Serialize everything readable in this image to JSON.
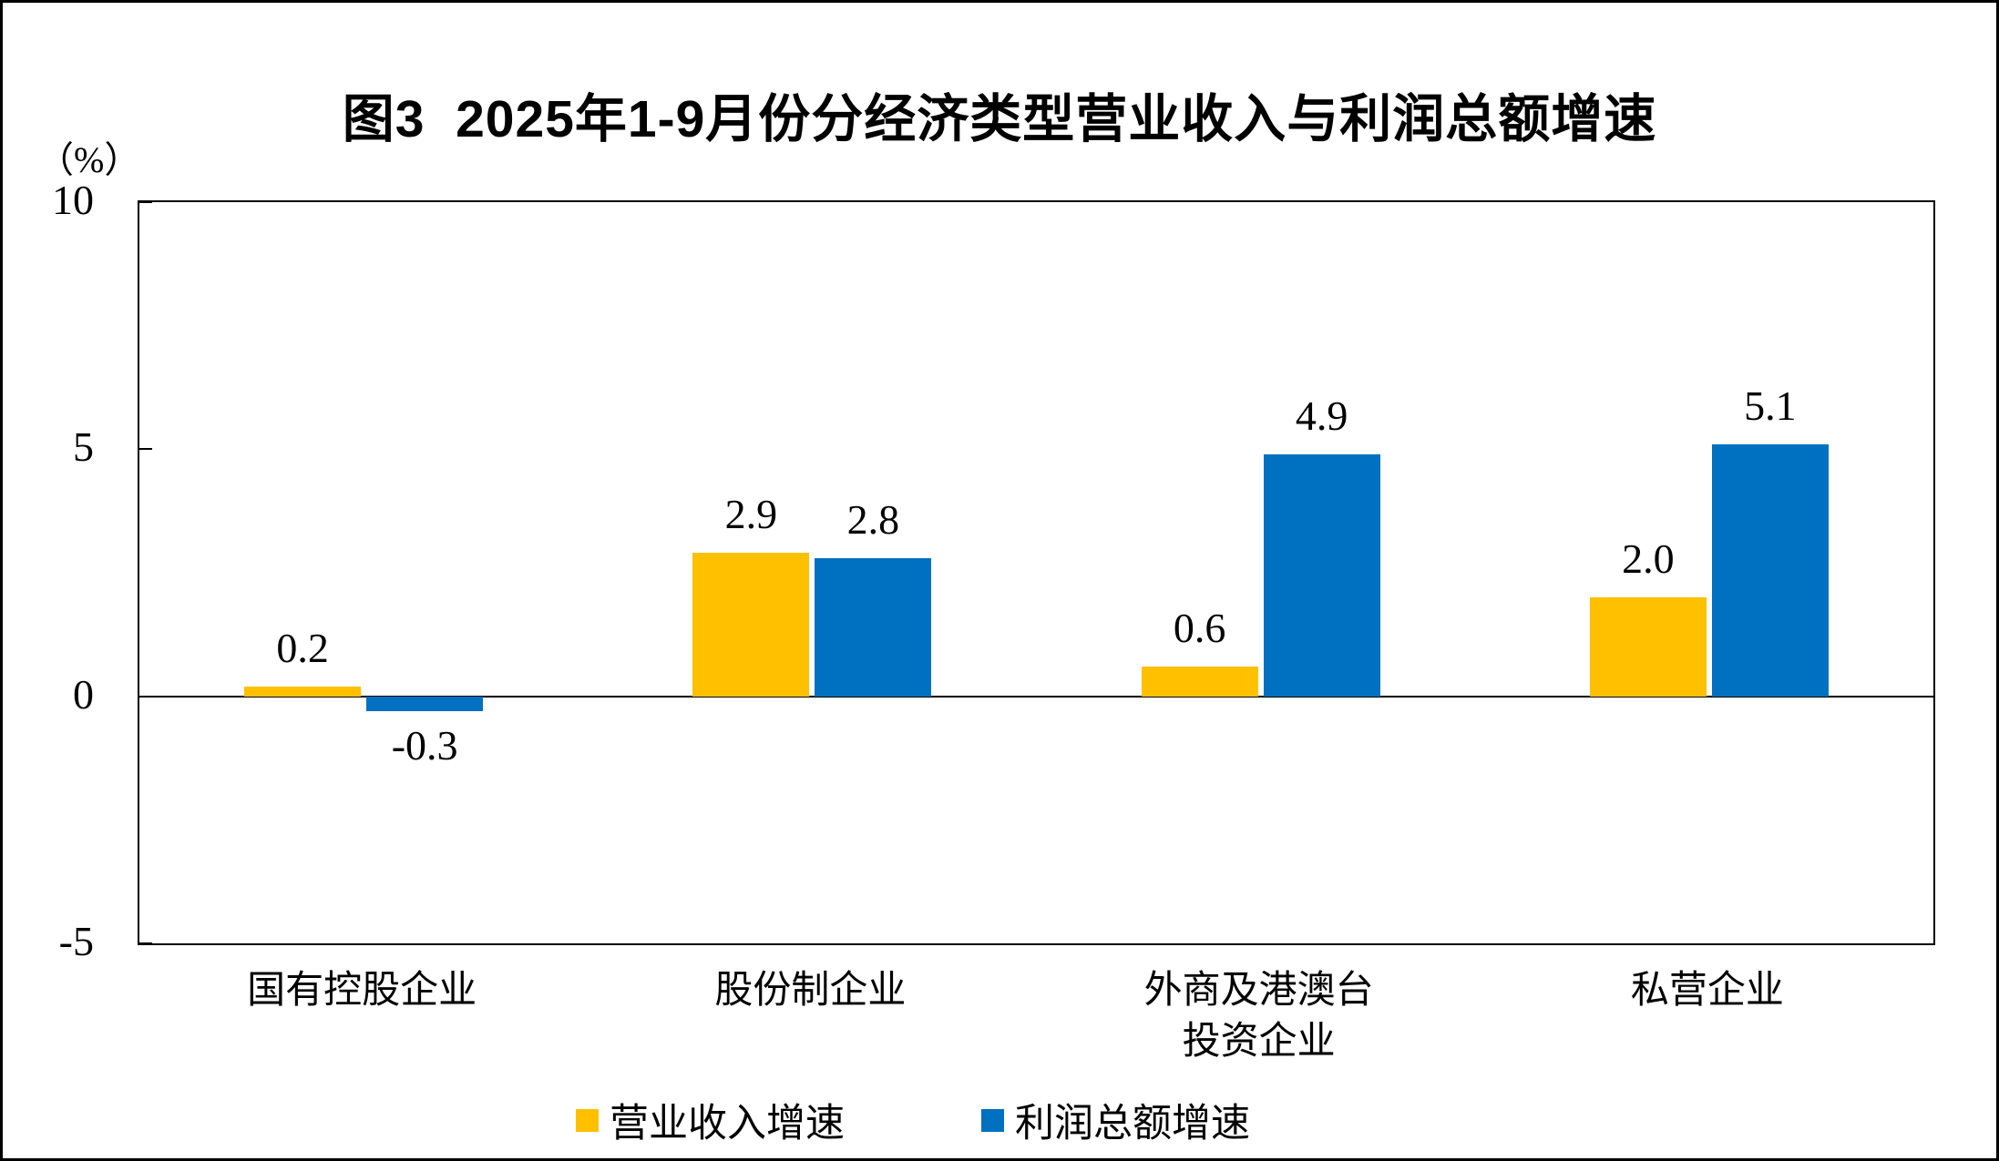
{
  "title": "图3  2025年1-9月份分经济类型营业收入与利润总额增速",
  "unit_label": "（%）",
  "chart_data": {
    "type": "bar",
    "categories": [
      "国有控股企业",
      "股份制企业",
      "外商及港澳台\n投资企业",
      "私营企业"
    ],
    "series": [
      {
        "name": "营业收入增速",
        "color": "#FFC000",
        "values": [
          0.2,
          2.9,
          0.6,
          2.0
        ]
      },
      {
        "name": "利润总额增速",
        "color": "#0070C0",
        "values": [
          -0.3,
          2.8,
          4.9,
          5.1
        ]
      }
    ],
    "ylabel": "（%）",
    "ylim": [
      -5,
      10
    ],
    "yticks": [
      10,
      5,
      0,
      -5
    ],
    "grid": false,
    "legend_position": "bottom",
    "value_labels": true,
    "bar_colors": {
      "yellow": "#FFC000",
      "blue": "#0070C0"
    }
  }
}
